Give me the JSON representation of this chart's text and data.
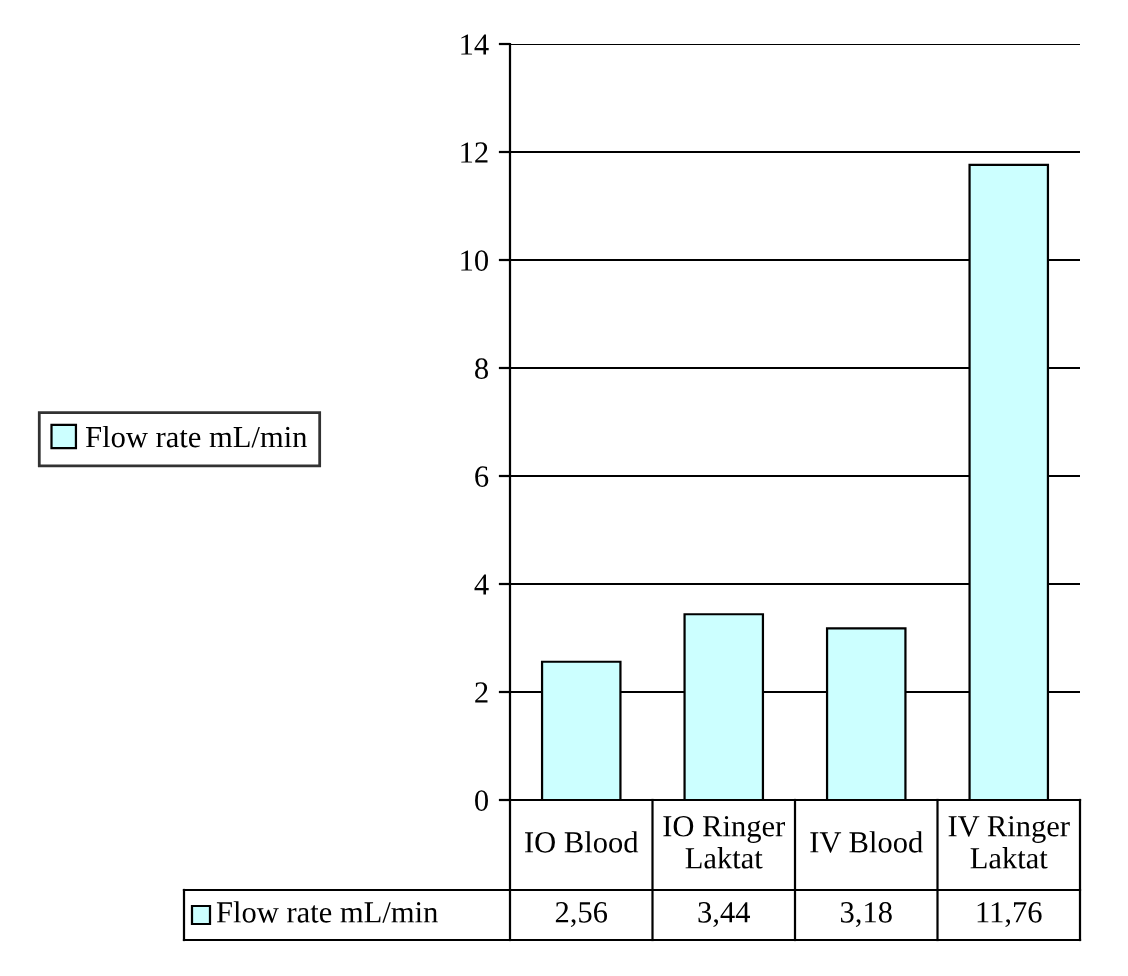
{
  "chart_data": {
    "type": "bar",
    "categories": [
      "IO Blood",
      "IO Ringer Laktat",
      "IV Blood",
      "IV Ringer Laktat"
    ],
    "series": [
      {
        "name": "Flow rate mL/min",
        "color": "#ccffff",
        "values": [
          2.56,
          3.44,
          3.18,
          11.76
        ],
        "value_labels": [
          "2,56",
          "3,44",
          "3,18",
          "11,76"
        ]
      }
    ],
    "ylim": [
      0,
      14
    ],
    "yticks": [
      0,
      2,
      4,
      6,
      8,
      10,
      12,
      14
    ],
    "grid": "y",
    "legend": "left"
  }
}
